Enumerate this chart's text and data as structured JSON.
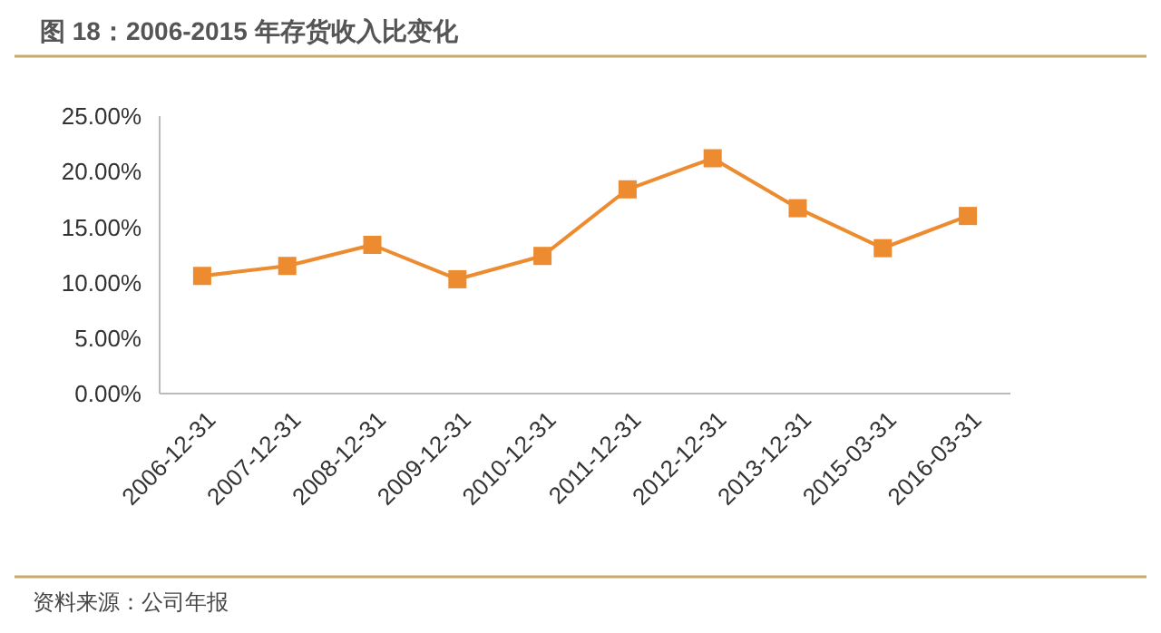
{
  "chart_data": {
    "type": "line",
    "title": "图 18：2006-2015 年存货收入比变化",
    "annotations": [
      "资料来源：公司年报"
    ],
    "categories": [
      "2006-12-31",
      "2007-12-31",
      "2008-12-31",
      "2009-12-31",
      "2010-12-31",
      "2011-12-31",
      "2012-12-31",
      "2013-12-31",
      "2015-03-31",
      "2016-03-31"
    ],
    "series": [
      {
        "color": "#ed8b30",
        "values": [
          10.6,
          11.5,
          13.4,
          10.3,
          12.4,
          18.4,
          21.2,
          16.7,
          13.1,
          16.0
        ]
      }
    ],
    "ylim": [
      0,
      25
    ],
    "yticks": [
      {
        "value": 0,
        "label": "0.00%"
      },
      {
        "value": 5,
        "label": "5.00%"
      },
      {
        "value": 10,
        "label": "10.00%"
      },
      {
        "value": 15,
        "label": "15.00%"
      },
      {
        "value": 20,
        "label": "20.00%"
      },
      {
        "value": 25,
        "label": "25.00%"
      }
    ],
    "grid": false,
    "marker": "square",
    "line_style": "solid"
  }
}
